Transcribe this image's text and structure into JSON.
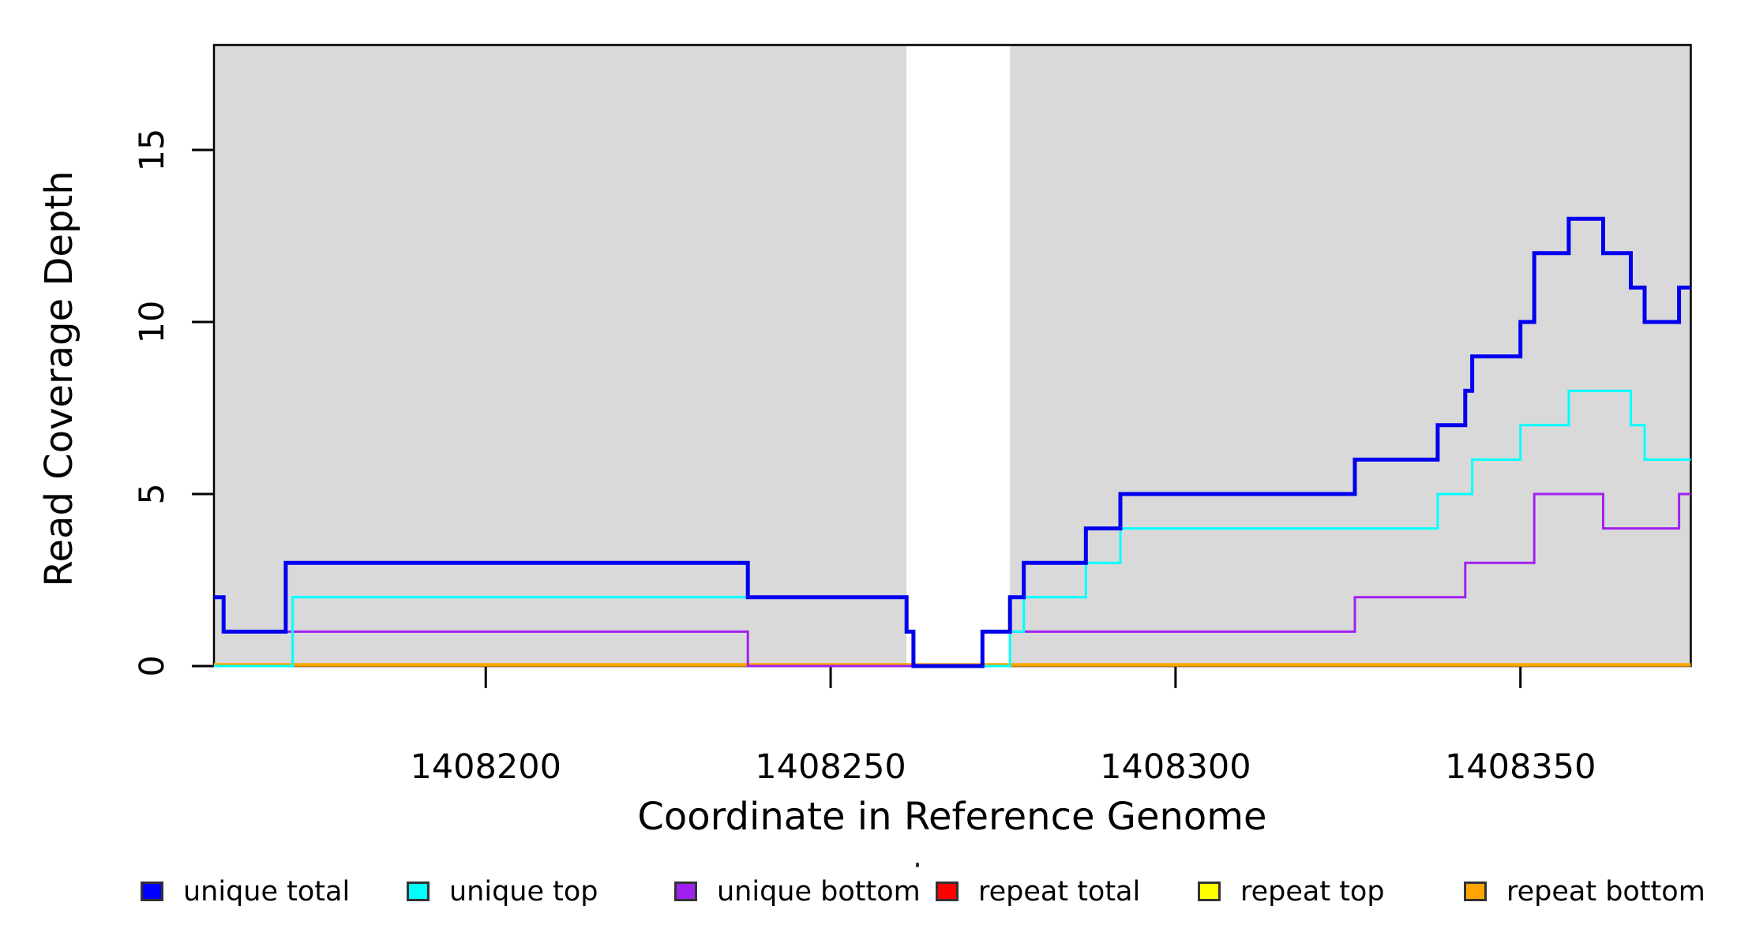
{
  "chart_data": {
    "type": "line",
    "subtype": "step-coverage",
    "title": "",
    "xlabel": "Coordinate in Reference Genome",
    "ylabel": "Read Coverage Depth",
    "x_ticks": [
      1408200,
      1408250,
      1408300,
      1408350
    ],
    "y_ticks": [
      0,
      5,
      10,
      15
    ],
    "xlim": [
      1408160.6,
      1408374.7
    ],
    "ylim": [
      0,
      18.05
    ],
    "grid": false,
    "legend_position": "bottom",
    "shade_color": "#D9D9D9",
    "shaded_regions": [
      [
        1408160.6,
        1408261
      ],
      [
        1408276,
        1408374.7
      ]
    ],
    "series": [
      {
        "name": "repeat total",
        "color": "#FF0000",
        "points": [
          [
            1408160.6,
            0
          ]
        ]
      },
      {
        "name": "repeat top",
        "color": "#FFFF00",
        "points": [
          [
            1408160.6,
            0
          ]
        ]
      },
      {
        "name": "repeat bottom",
        "color": "#FFA500",
        "points": [
          [
            1408160.6,
            0
          ]
        ]
      },
      {
        "name": "unique bottom",
        "color": "#A020F0",
        "points": [
          [
            1408160.6,
            2
          ],
          [
            1408162,
            1
          ],
          [
            1408238,
            0
          ],
          [
            1408272,
            1
          ],
          [
            1408326,
            2
          ],
          [
            1408342,
            3
          ],
          [
            1408352,
            5
          ],
          [
            1408362,
            4
          ],
          [
            1408373,
            5
          ]
        ]
      },
      {
        "name": "unique top",
        "color": "#00FFFF",
        "points": [
          [
            1408160.6,
            0
          ],
          [
            1408172,
            2
          ],
          [
            1408261,
            1
          ],
          [
            1408262,
            0
          ],
          [
            1408276,
            1
          ],
          [
            1408278,
            2
          ],
          [
            1408287,
            3
          ],
          [
            1408292,
            4
          ],
          [
            1408338,
            5
          ],
          [
            1408343,
            6
          ],
          [
            1408350,
            7
          ],
          [
            1408357,
            8
          ],
          [
            1408366,
            7
          ],
          [
            1408368,
            6
          ]
        ]
      },
      {
        "name": "unique total",
        "color": "#0000EE",
        "points": [
          [
            1408160.6,
            2
          ],
          [
            1408162,
            1
          ],
          [
            1408171,
            3
          ],
          [
            1408238,
            2
          ],
          [
            1408261,
            1
          ],
          [
            1408262,
            0
          ],
          [
            1408272,
            1
          ],
          [
            1408276,
            2
          ],
          [
            1408278,
            3
          ],
          [
            1408287,
            4
          ],
          [
            1408292,
            5
          ],
          [
            1408326,
            6
          ],
          [
            1408338,
            7
          ],
          [
            1408342,
            8
          ],
          [
            1408343,
            9
          ],
          [
            1408350,
            10
          ],
          [
            1408352,
            12
          ],
          [
            1408357,
            13
          ],
          [
            1408362,
            12
          ],
          [
            1408366,
            11
          ],
          [
            1408368,
            10
          ],
          [
            1408373,
            11
          ]
        ]
      }
    ]
  },
  "legend": {
    "items": [
      {
        "label": "unique total",
        "color": "#0000FF"
      },
      {
        "label": "unique top",
        "color": "#00FFFF"
      },
      {
        "label": "unique bottom",
        "color": "#A020F0"
      },
      {
        "label": "repeat total",
        "color": "#FF0000"
      },
      {
        "label": "repeat top",
        "color": "#FFFF00"
      },
      {
        "label": "repeat bottom",
        "color": "#FFA500"
      }
    ]
  }
}
